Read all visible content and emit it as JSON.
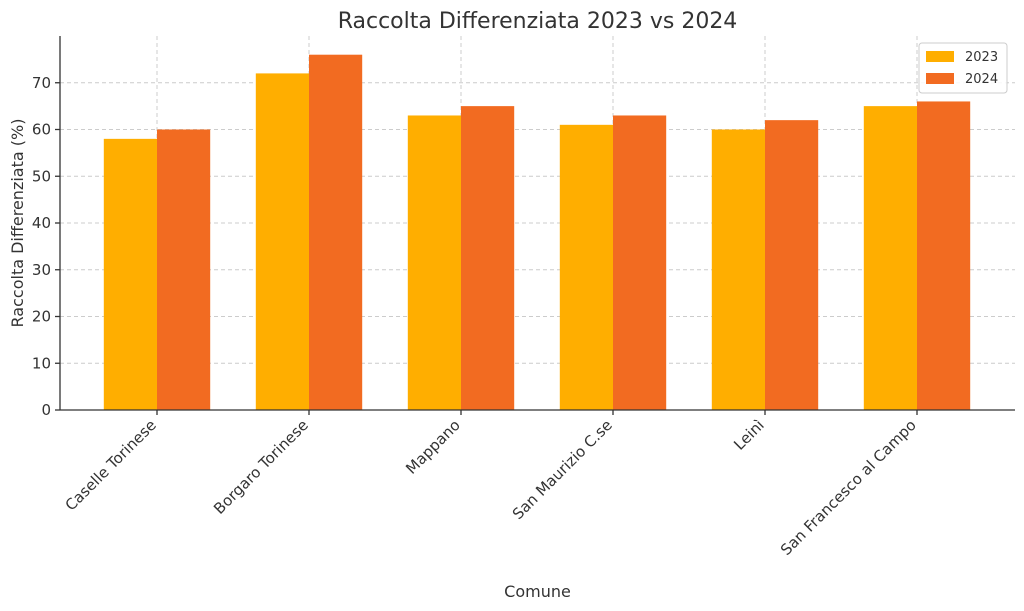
{
  "chart_data": {
    "type": "bar",
    "title": "Raccolta Differenziata 2023 vs 2024",
    "xlabel": "Comune",
    "ylabel": "Raccolta Differenziata (%)",
    "categories": [
      "Caselle Torinese",
      "Borgaro Torinese",
      "Mappano",
      "San Maurizio C.se",
      "Leinì",
      "San Francesco al Campo"
    ],
    "series": [
      {
        "name": "2023",
        "values": [
          58,
          72,
          63,
          61,
          60,
          65
        ],
        "color": "#FFAE00"
      },
      {
        "name": "2024",
        "values": [
          60,
          76,
          65,
          63,
          62,
          66
        ],
        "color": "#F26B21"
      }
    ],
    "ylim": [
      0,
      80
    ],
    "yticks": [
      0,
      10,
      20,
      30,
      40,
      50,
      60,
      70
    ],
    "grid": true,
    "legend": "top-right"
  }
}
